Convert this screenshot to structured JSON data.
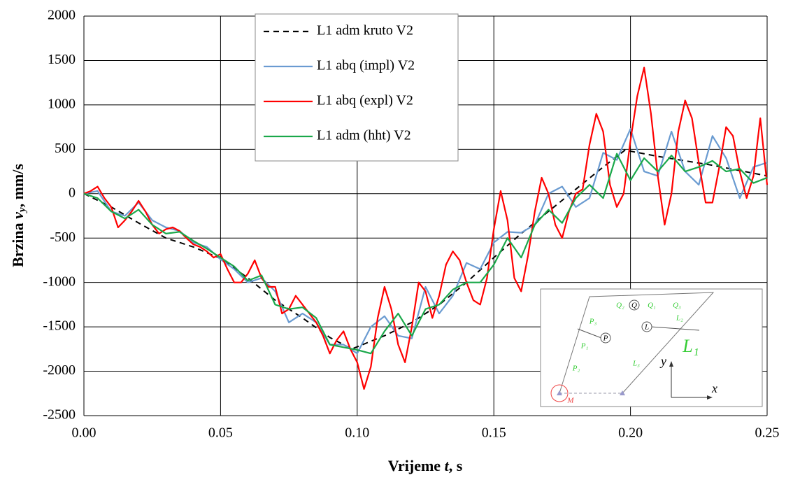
{
  "chart_data": {
    "type": "line",
    "xlabel": {
      "text": "Vrijeme ",
      "var": "t",
      "unit": ", s"
    },
    "ylabel": {
      "text": "Brzina ",
      "var": "v",
      "sub": "y",
      "unit": ", mm/s"
    },
    "xlim": [
      0,
      0.25
    ],
    "ylim": [
      -2500,
      2000
    ],
    "xticks": [
      {
        "value": 0,
        "label": "0.00"
      },
      0.05,
      {
        "value": 0.1,
        "label": "0.10"
      },
      0.15,
      {
        "value": 0.2,
        "label": "0.20"
      },
      0.25
    ],
    "yticks": [
      -2500,
      -2000,
      -1500,
      -1000,
      -500,
      0,
      500,
      1000,
      1500,
      2000
    ],
    "grid": true,
    "legend": "upper center",
    "series": [
      {
        "name": "L1 adm kruto V2",
        "color": "#000000",
        "dash": true,
        "x": [
          0,
          0.01,
          0.02,
          0.03,
          0.04,
          0.05,
          0.06,
          0.07,
          0.08,
          0.09,
          0.098,
          0.11,
          0.12,
          0.13,
          0.14,
          0.15,
          0.16,
          0.17,
          0.18,
          0.19,
          0.198,
          0.21,
          0.22,
          0.23,
          0.24,
          0.25
        ],
        "values": [
          0,
          -150,
          -330,
          -500,
          -600,
          -730,
          -950,
          -1200,
          -1400,
          -1620,
          -1750,
          -1600,
          -1450,
          -1250,
          -1000,
          -720,
          -450,
          -200,
          50,
          300,
          490,
          420,
          370,
          320,
          260,
          200
        ]
      },
      {
        "name": "L1 abq (impl) V2",
        "color": "#6a9bd1",
        "dash": false,
        "x": [
          0,
          0.005,
          0.01,
          0.015,
          0.02,
          0.025,
          0.03,
          0.035,
          0.04,
          0.045,
          0.05,
          0.055,
          0.06,
          0.065,
          0.07,
          0.075,
          0.08,
          0.085,
          0.09,
          0.095,
          0.1,
          0.105,
          0.11,
          0.115,
          0.12,
          0.125,
          0.13,
          0.135,
          0.14,
          0.145,
          0.15,
          0.155,
          0.16,
          0.165,
          0.17,
          0.175,
          0.18,
          0.185,
          0.19,
          0.195,
          0.2,
          0.205,
          0.21,
          0.215,
          0.22,
          0.225,
          0.23,
          0.235,
          0.24,
          0.245,
          0.25
        ],
        "values": [
          0,
          30,
          -200,
          -250,
          -100,
          -300,
          -380,
          -420,
          -550,
          -600,
          -740,
          -850,
          -1000,
          -950,
          -1100,
          -1450,
          -1350,
          -1450,
          -1700,
          -1700,
          -1800,
          -1500,
          -1380,
          -1600,
          -1630,
          -1050,
          -1350,
          -1150,
          -780,
          -850,
          -550,
          -430,
          -440,
          -350,
          0,
          80,
          -150,
          -50,
          460,
          380,
          730,
          250,
          200,
          700,
          250,
          100,
          650,
          400,
          -50,
          300,
          350
        ]
      },
      {
        "name": "L1 abq (expl) V2",
        "color": "#ff0000",
        "dash": false,
        "x": [
          0,
          0.0025,
          0.005,
          0.0075,
          0.01,
          0.0125,
          0.015,
          0.0175,
          0.02,
          0.0225,
          0.025,
          0.0275,
          0.03,
          0.0325,
          0.035,
          0.0375,
          0.04,
          0.0425,
          0.045,
          0.0475,
          0.05,
          0.0525,
          0.055,
          0.0575,
          0.06,
          0.0625,
          0.065,
          0.0675,
          0.07,
          0.0725,
          0.075,
          0.0775,
          0.08,
          0.0825,
          0.085,
          0.0875,
          0.09,
          0.0925,
          0.095,
          0.0975,
          0.1,
          0.1025,
          0.105,
          0.1075,
          0.11,
          0.1125,
          0.115,
          0.1175,
          0.12,
          0.1225,
          0.125,
          0.1275,
          0.13,
          0.1325,
          0.135,
          0.1375,
          0.14,
          0.1425,
          0.145,
          0.1475,
          0.15,
          0.1525,
          0.155,
          0.1575,
          0.16,
          0.1625,
          0.165,
          0.1675,
          0.17,
          0.1725,
          0.175,
          0.1775,
          0.18,
          0.1825,
          0.185,
          0.1875,
          0.19,
          0.1925,
          0.195,
          0.1975,
          0.2,
          0.2025,
          0.205,
          0.2075,
          0.21,
          0.2125,
          0.215,
          0.2175,
          0.22,
          0.2225,
          0.225,
          0.2275,
          0.23,
          0.2325,
          0.235,
          0.2375,
          0.24,
          0.2425,
          0.245,
          0.2475,
          0.25
        ],
        "values": [
          0,
          30,
          80,
          -50,
          -150,
          -380,
          -300,
          -200,
          -80,
          -200,
          -350,
          -450,
          -400,
          -380,
          -420,
          -500,
          -570,
          -600,
          -650,
          -720,
          -680,
          -850,
          -1000,
          -1000,
          -900,
          -750,
          -950,
          -1050,
          -1050,
          -1350,
          -1300,
          -1150,
          -1250,
          -1350,
          -1450,
          -1600,
          -1800,
          -1650,
          -1550,
          -1750,
          -1900,
          -2200,
          -1950,
          -1400,
          -1050,
          -1300,
          -1700,
          -1900,
          -1500,
          -1000,
          -1100,
          -1400,
          -1150,
          -800,
          -650,
          -750,
          -1000,
          -1200,
          -1250,
          -950,
          -400,
          30,
          -300,
          -950,
          -1100,
          -700,
          -200,
          180,
          0,
          -350,
          -500,
          -200,
          0,
          50,
          550,
          900,
          700,
          100,
          -150,
          0,
          600,
          1100,
          1420,
          900,
          200,
          -350,
          0,
          700,
          1050,
          850,
          350,
          -100,
          -100,
          300,
          750,
          650,
          250,
          -50,
          200,
          850,
          100
        ]
      },
      {
        "name": "L1 adm (hht) V2",
        "color": "#1aa84a",
        "dash": false,
        "x": [
          0,
          0.005,
          0.01,
          0.015,
          0.02,
          0.025,
          0.03,
          0.035,
          0.04,
          0.045,
          0.05,
          0.055,
          0.06,
          0.065,
          0.07,
          0.075,
          0.08,
          0.085,
          0.09,
          0.095,
          0.1,
          0.105,
          0.11,
          0.115,
          0.12,
          0.125,
          0.13,
          0.135,
          0.14,
          0.145,
          0.15,
          0.155,
          0.16,
          0.165,
          0.17,
          0.175,
          0.18,
          0.185,
          0.19,
          0.195,
          0.2,
          0.205,
          0.21,
          0.215,
          0.22,
          0.225,
          0.23,
          0.235,
          0.24,
          0.245,
          0.25
        ],
        "values": [
          0,
          -50,
          -200,
          -280,
          -180,
          -350,
          -450,
          -430,
          -530,
          -620,
          -720,
          -820,
          -980,
          -920,
          -1250,
          -1300,
          -1280,
          -1400,
          -1700,
          -1730,
          -1760,
          -1800,
          -1550,
          -1350,
          -1600,
          -1300,
          -1250,
          -1080,
          -1000,
          -1000,
          -800,
          -500,
          -720,
          -350,
          -180,
          -330,
          -50,
          100,
          -50,
          450,
          150,
          400,
          250,
          430,
          250,
          300,
          370,
          250,
          280,
          120,
          180
        ]
      }
    ]
  },
  "inset": {
    "labels": [
      "Q₂",
      "Q",
      "Q₁",
      "Q₃",
      "L₂",
      "L",
      "P₃",
      "P",
      "P₁",
      "L₁",
      "P₂",
      "L₃",
      "y",
      "x",
      "M"
    ]
  }
}
